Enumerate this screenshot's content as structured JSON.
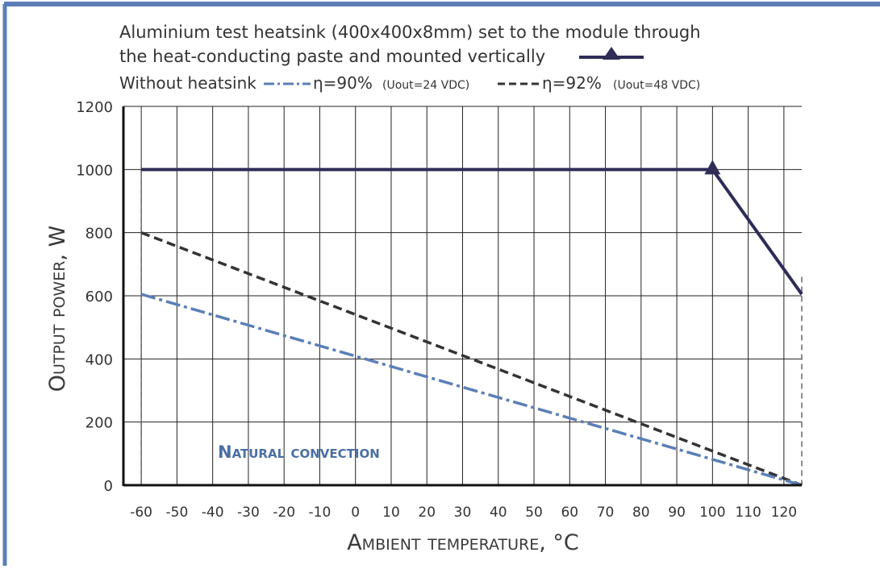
{
  "chart_data": {
    "type": "line",
    "legend": {
      "heatsink_line1": "Aluminium test heatsink (400x400x8mm) set to the module through",
      "heatsink_line2": "the heat-conducting paste and mounted vertically",
      "without_heatsink": "Without heatsink",
      "eta90": "η=90%",
      "eta90_note": "(Uout=24 VDC)",
      "eta92": "η=92%",
      "eta92_note": "(Uout=48 VDC)"
    },
    "annotation": "Natural convection",
    "xlabel": "Ambient temperature, °C",
    "ylabel": "Output power, W",
    "xlim": [
      -65,
      125
    ],
    "ylim": [
      0,
      1200
    ],
    "x_ticks": [
      -60,
      -50,
      -40,
      -30,
      -20,
      -10,
      0,
      10,
      20,
      30,
      40,
      50,
      60,
      70,
      80,
      90,
      100,
      110,
      120
    ],
    "y_ticks": [
      0,
      200,
      400,
      600,
      800,
      1000,
      1200
    ],
    "series": [
      {
        "key": "heatsink",
        "x": [
          -60,
          100,
          125
        ],
        "y": [
          1000,
          1000,
          605
        ],
        "color": "#2e2d57",
        "style": "solid",
        "marker_at_x": 100
      },
      {
        "key": "eta92",
        "x": [
          -60,
          125
        ],
        "y": [
          800,
          0
        ],
        "color": "#333333",
        "style": "dashed"
      },
      {
        "key": "eta90",
        "x": [
          -60,
          125
        ],
        "y": [
          605,
          0
        ],
        "color": "#5a7fb7",
        "style": "dashdot"
      }
    ],
    "guides": [
      {
        "x": -60,
        "y": [
          0,
          1000
        ]
      },
      {
        "x": 125,
        "y": [
          0,
          660
        ]
      }
    ],
    "grid": true,
    "colors": {
      "frame": "#5a7fb7",
      "annotation": "#4a6fa5",
      "axis_title": "#3a3a3a"
    }
  }
}
